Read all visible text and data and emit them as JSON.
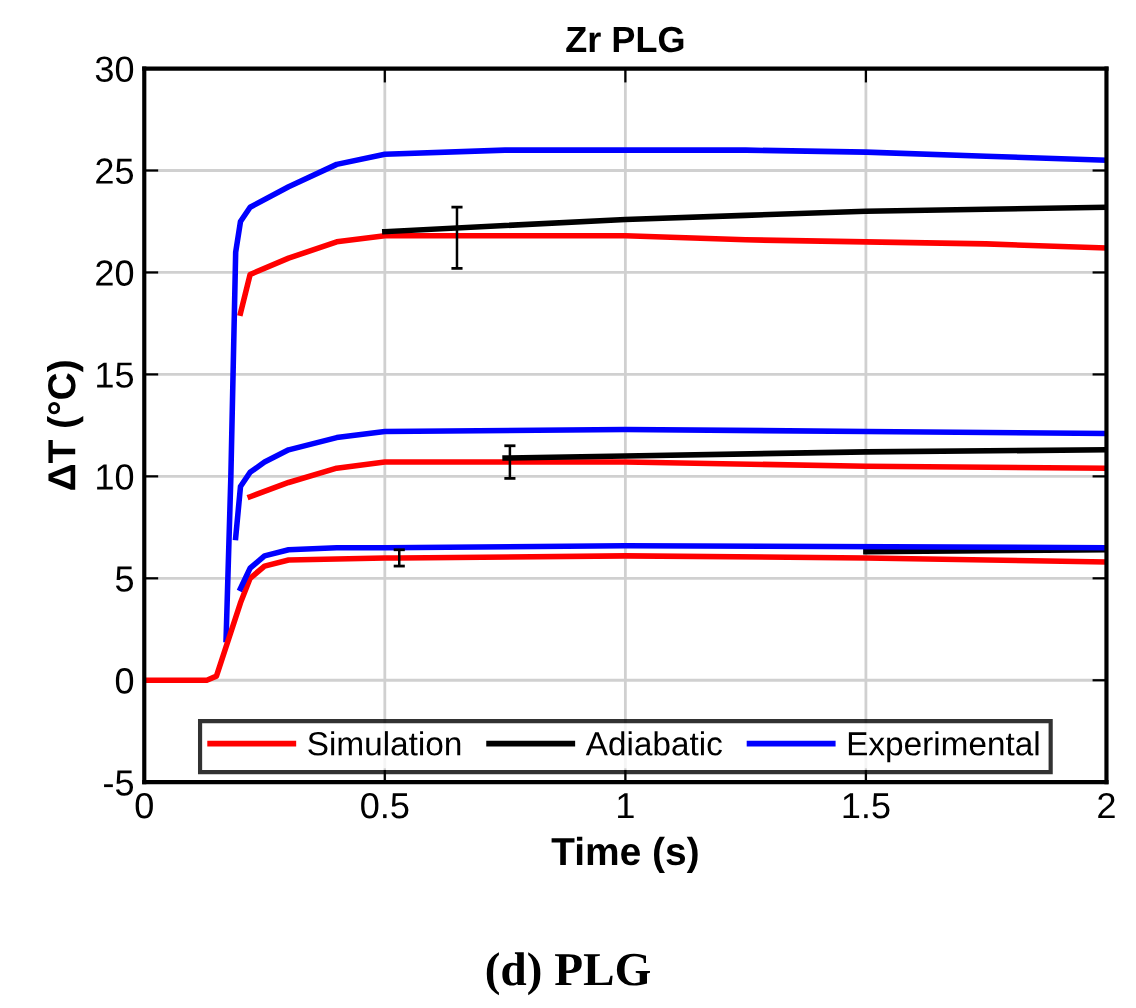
{
  "chart_data": {
    "type": "line",
    "title": "Zr PLG",
    "xlabel": "Time (s)",
    "ylabel": "ΔT (°C)",
    "annotations": [
      "(d) PLG"
    ],
    "xlim": [
      0,
      2
    ],
    "ylim": [
      -5,
      30
    ],
    "xticks": [
      0,
      0.5,
      1,
      1.5,
      2
    ],
    "yticks": [
      -5,
      0,
      5,
      10,
      15,
      20,
      25,
      30
    ],
    "grid": true,
    "legend": "bottom",
    "line_style": "solid",
    "marker": "none",
    "series": [
      {
        "name": "Simulation",
        "color": "#ff0000",
        "x": [
          0.2,
          0.22,
          0.3,
          0.4,
          0.5,
          0.65,
          0.75,
          1,
          1.25,
          1.5,
          1.75,
          2
        ],
        "values": [
          18,
          19.9,
          20.7,
          21.5,
          21.8,
          21.8,
          21.8,
          21.8,
          21.6,
          21.5,
          21.4,
          21.2
        ],
        "errors": [
          null,
          null,
          null,
          null,
          null,
          [
            20.2,
            23.2
          ],
          null,
          null,
          null,
          null,
          null,
          null
        ]
      },
      {
        "name": "Adiabatic",
        "color": "#000000",
        "x": [
          0.5,
          0.75,
          1,
          1.25,
          1.5,
          1.75,
          2
        ],
        "values": [
          22,
          22.3,
          22.6,
          22.8,
          23,
          23.1,
          23.2
        ]
      },
      {
        "name": "Experimental",
        "color": "#0000ff",
        "x": [
          0.17,
          0.18,
          0.19,
          0.2,
          0.22,
          0.3,
          0.4,
          0.5,
          0.75,
          1,
          1.25,
          1.5,
          1.75,
          2
        ],
        "values": [
          2,
          10,
          21,
          22.5,
          23.2,
          24.2,
          25.3,
          25.8,
          26,
          26,
          26,
          25.9,
          25.7,
          25.5
        ]
      },
      {
        "color": "#ff0000",
        "x": [
          0.22,
          0.3,
          0.4,
          0.5,
          0.76,
          1,
          1.5,
          2
        ],
        "values": [
          9,
          9.7,
          10.4,
          10.7,
          10.7,
          10.7,
          10.5,
          10.4
        ],
        "errors": [
          null,
          null,
          null,
          null,
          [
            9.9,
            11.5
          ],
          null,
          null,
          null
        ]
      },
      {
        "color": "#000000",
        "x": [
          0.75,
          1,
          1.5,
          2
        ],
        "values": [
          10.9,
          11,
          11.2,
          11.3
        ]
      },
      {
        "color": "#0000ff",
        "x": [
          0.19,
          0.2,
          0.22,
          0.25,
          0.3,
          0.4,
          0.5,
          1,
          1.5,
          2
        ],
        "values": [
          7,
          9.5,
          10.2,
          10.7,
          11.3,
          11.9,
          12.2,
          12.3,
          12.2,
          12.1
        ]
      },
      {
        "color": "#ff0000",
        "x": [
          0,
          0.13,
          0.15,
          0.2,
          0.22,
          0.25,
          0.3,
          0.5,
          0.53,
          1,
          1.5,
          2
        ],
        "values": [
          0,
          0,
          0.2,
          3.8,
          5,
          5.6,
          5.9,
          6,
          6,
          6.1,
          6,
          5.8
        ],
        "errors": [
          null,
          null,
          null,
          null,
          null,
          null,
          null,
          null,
          [
            5.6,
            6.4
          ],
          null,
          null,
          null
        ]
      },
      {
        "color": "#000000",
        "x": [
          1.5,
          2
        ],
        "values": [
          6.3,
          6.4
        ]
      },
      {
        "color": "#0000ff",
        "x": [
          0.2,
          0.22,
          0.25,
          0.3,
          0.4,
          0.5,
          1,
          2
        ],
        "values": [
          4.5,
          5.5,
          6.1,
          6.4,
          6.5,
          6.5,
          6.6,
          6.5
        ]
      }
    ]
  }
}
